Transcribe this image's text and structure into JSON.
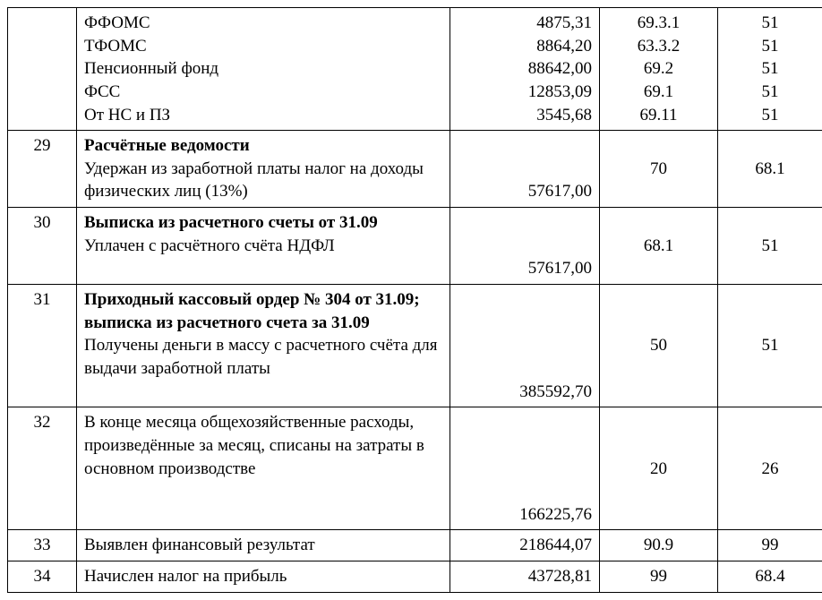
{
  "table": {
    "rows": [
      {
        "num": "",
        "desc_lines": [
          "ФФОМС",
          "ТФОМС",
          "Пенсионный фонд",
          "ФСС",
          "От НС и ПЗ"
        ],
        "desc_bold": [
          false,
          false,
          false,
          false,
          false
        ],
        "amount_lines": [
          "4875,31",
          "8864,20",
          "88642,00",
          "12853,09",
          "3545,68"
        ],
        "acc1_lines": [
          "69.3.1",
          "63.3.2",
          "69.2",
          "69.1",
          "69.11"
        ],
        "acc2_lines": [
          "51",
          "51",
          "51",
          "51",
          "51"
        ]
      },
      {
        "num": "29",
        "desc_lines": [
          "Расчётные ведомости",
          "Удержан из заработной платы налог на доходы физических лиц (13%)"
        ],
        "desc_bold": [
          true,
          false
        ],
        "amount_lines": [
          "",
          "",
          "57617,00"
        ],
        "acc1_lines": [
          "70"
        ],
        "acc2_lines": [
          "68.1"
        ]
      },
      {
        "num": "30",
        "desc_lines": [
          "Выписка из расчетного счеты от 31.09",
          "Уплачен с расчётного счёта НДФЛ"
        ],
        "desc_bold": [
          true,
          false
        ],
        "amount_lines": [
          "",
          "",
          "57617,00"
        ],
        "acc1_lines": [
          "68.1"
        ],
        "acc2_lines": [
          "51"
        ]
      },
      {
        "num": "31",
        "desc_lines": [
          "Приходный кассовый ордер № 304 от 31.09; выписка из расчетного счета за 31.09",
          "Получены деньги в массу с расчетного счёта для выдачи заработной платы"
        ],
        "desc_bold": [
          true,
          false
        ],
        "amount_lines": [
          "",
          "",
          "",
          "",
          "385592,70"
        ],
        "acc1_lines": [
          "50"
        ],
        "acc2_lines": [
          "51"
        ]
      },
      {
        "num": "32",
        "desc_lines": [
          "В конце месяца общехозяйственные расходы, произведённые за месяц, списаны на затраты в основном производстве"
        ],
        "desc_bold": [
          false
        ],
        "amount_lines": [
          "",
          "",
          "",
          "",
          "166225,76"
        ],
        "acc1_lines": [
          "20"
        ],
        "acc2_lines": [
          "26"
        ]
      },
      {
        "num": "33",
        "desc_lines": [
          "Выявлен финансовый результат"
        ],
        "desc_bold": [
          false
        ],
        "amount_lines": [
          "218644,07"
        ],
        "acc1_lines": [
          "90.9"
        ],
        "acc2_lines": [
          "99"
        ]
      },
      {
        "num": "34",
        "desc_lines": [
          "Начислен налог на прибыль"
        ],
        "desc_bold": [
          false
        ],
        "amount_lines": [
          "43728,81"
        ],
        "acc1_lines": [
          "99"
        ],
        "acc2_lines": [
          "68.4"
        ]
      }
    ]
  }
}
